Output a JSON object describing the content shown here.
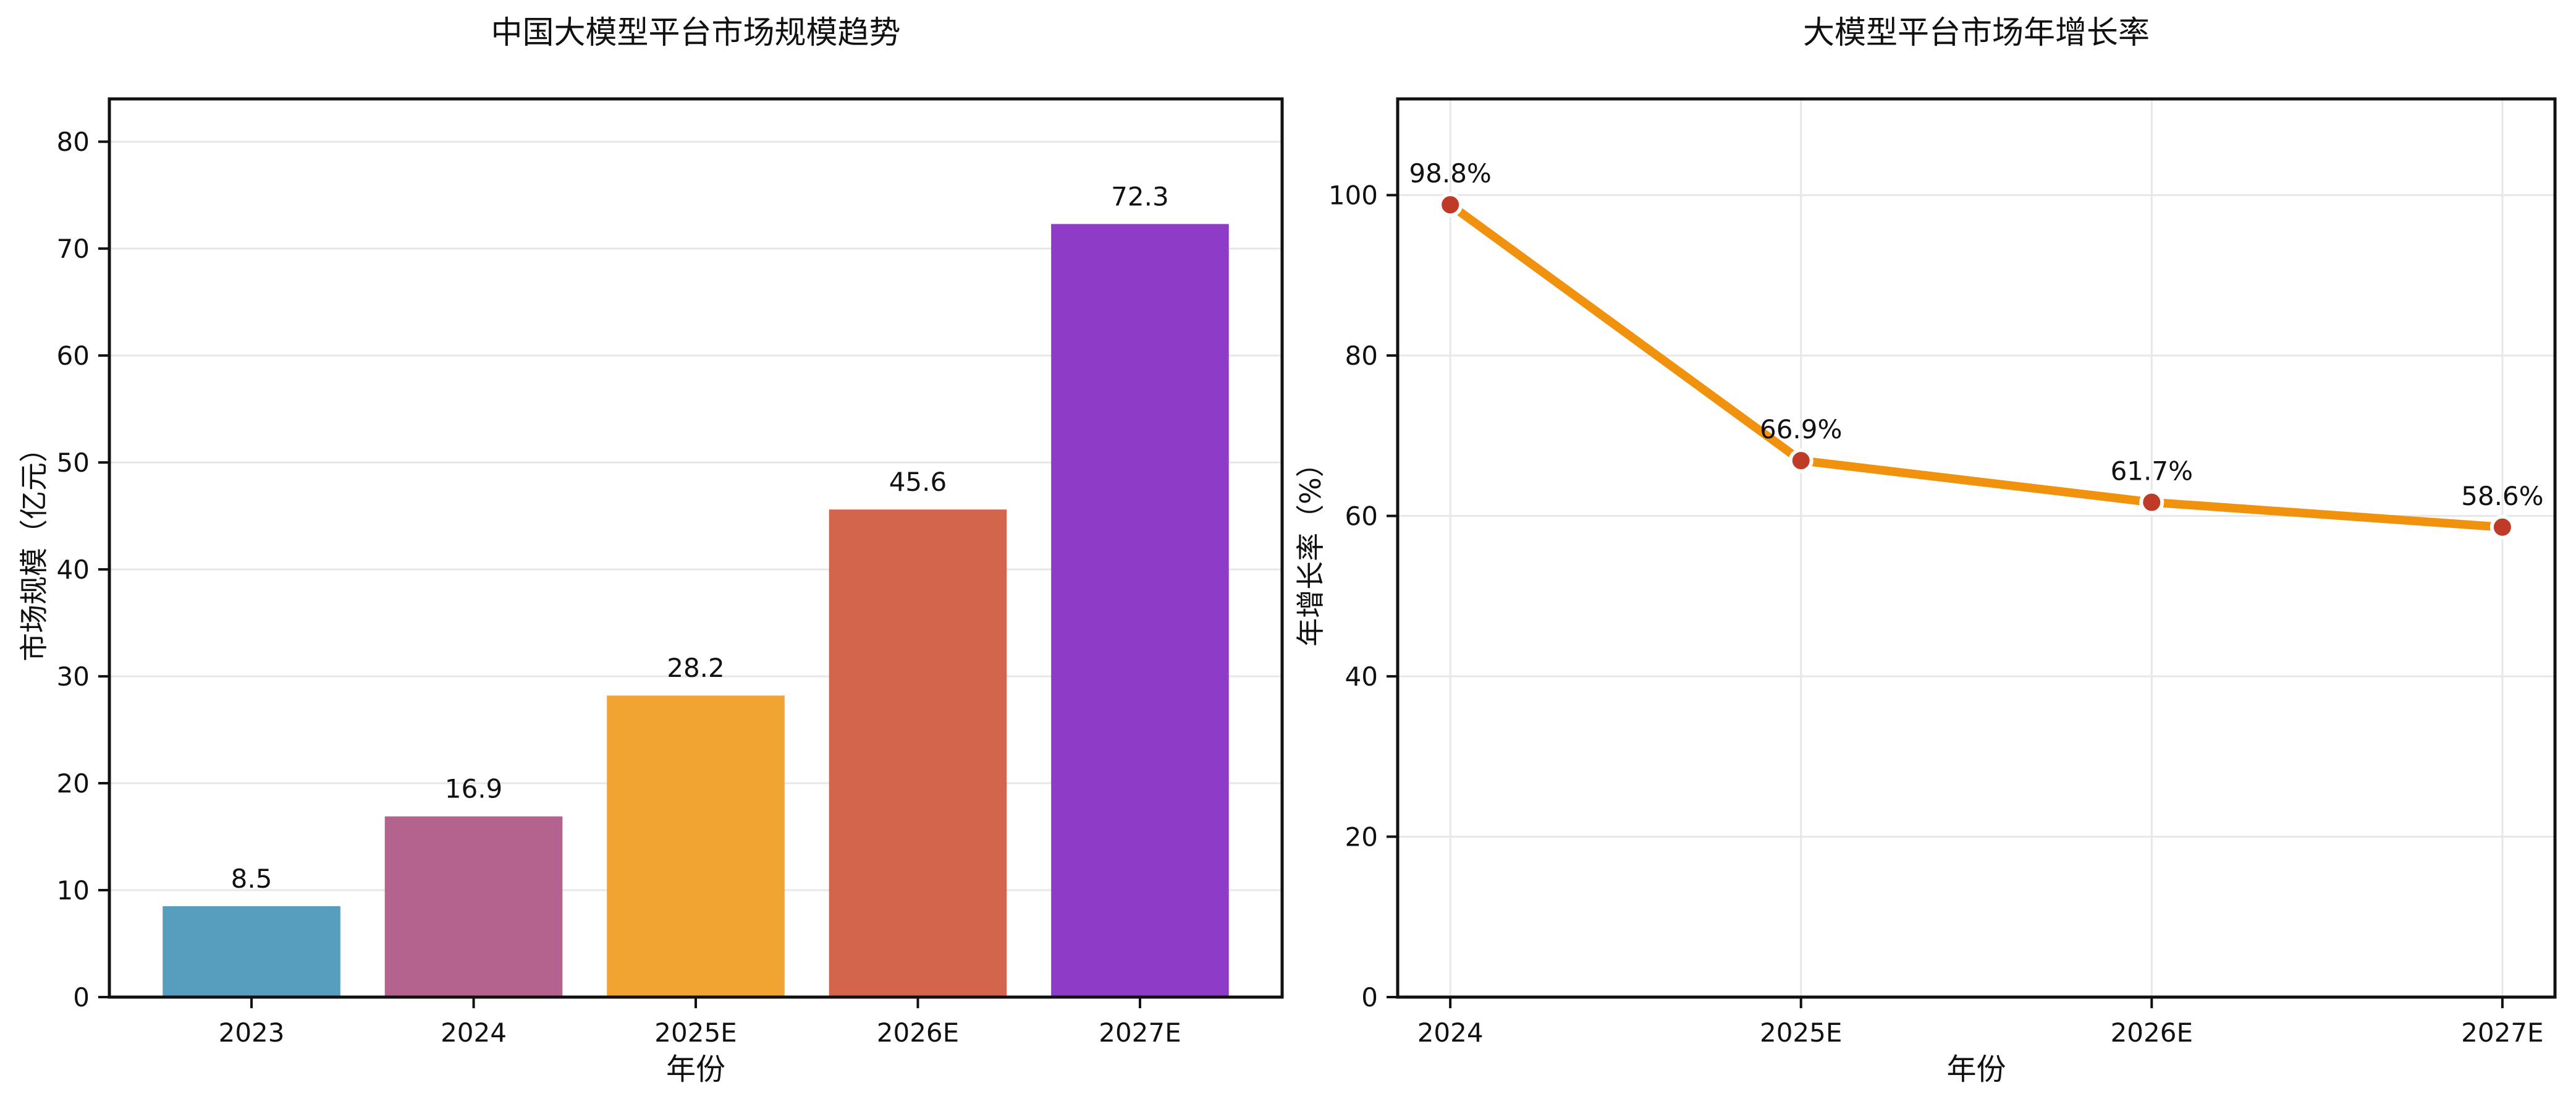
{
  "figure": {
    "background": "#ffffff",
    "text_color": "#111111",
    "grid_color": "#e7e7e7",
    "spine_color": "#111111"
  },
  "chart_data": [
    {
      "id": "market-size",
      "type": "bar",
      "title": "中国大模型平台市场规模趋势",
      "xlabel": "年份",
      "ylabel": "市场规模（亿元）",
      "categories": [
        "2023",
        "2024",
        "2025E",
        "2026E",
        "2027E"
      ],
      "values": [
        8.5,
        16.9,
        28.2,
        45.6,
        72.3
      ],
      "value_labels": [
        "8.5",
        "16.9",
        "28.2",
        "45.6",
        "72.3"
      ],
      "bar_colors": [
        "#579ebe",
        "#b4638f",
        "#f2a432",
        "#d2654c",
        "#8e3bc8"
      ],
      "ylim": [
        0,
        84
      ],
      "yticks": [
        0,
        10,
        20,
        30,
        40,
        50,
        60,
        70,
        80
      ],
      "grid": "horizontal",
      "legend": "none"
    },
    {
      "id": "growth-rate",
      "type": "line",
      "title": "大模型平台市场年增长率",
      "xlabel": "年份",
      "ylabel": "年增长率（%）",
      "categories": [
        "2024",
        "2025E",
        "2026E",
        "2027E"
      ],
      "values": [
        98.8,
        66.9,
        61.7,
        58.6
      ],
      "value_labels": [
        "98.8%",
        "66.9%",
        "61.7%",
        "58.6%"
      ],
      "line_color": "#f0920e",
      "marker_color": "#c03a28",
      "marker_edge_color": "#ffffff",
      "ylim": [
        0,
        112
      ],
      "yticks": [
        0,
        20,
        40,
        60,
        80,
        100
      ],
      "grid": "both",
      "legend": "none"
    }
  ]
}
